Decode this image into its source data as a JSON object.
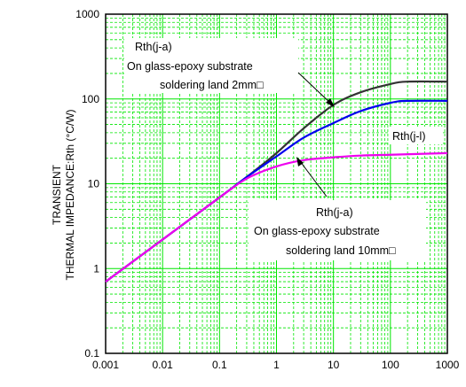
{
  "chart_data": {
    "type": "line",
    "xscale": "log",
    "yscale": "log",
    "xlim": [
      0.001,
      1000
    ],
    "ylim": [
      0.1,
      1000
    ],
    "xticks": [
      "0.001",
      "0.01",
      "0.1",
      "1",
      "10",
      "100",
      "1000"
    ],
    "yticks": [
      "1000",
      "100",
      "10",
      "1",
      "0.1"
    ],
    "ylabel_line1": "TRANSIENT",
    "ylabel_line2": "THERMAL IMPEDANCE:Rth (°C/W)",
    "xlabel": "",
    "grid": true,
    "grid_color": "#00e600",
    "series": [
      {
        "name": "Rth(j-a) On glass-epoxy substrate soldering land 2mm□",
        "color": "#333333",
        "x": [
          0.001,
          0.01,
          0.1,
          0.3,
          1,
          3,
          10,
          30,
          100,
          200,
          1000
        ],
        "y": [
          0.7,
          2.2,
          6.9,
          12,
          23,
          45,
          85,
          120,
          150,
          160,
          160
        ]
      },
      {
        "name": "Rth(j-a) On glass-epoxy substrate soldering land 10mm□",
        "color": "#0000ee",
        "x": [
          0.001,
          0.01,
          0.1,
          0.3,
          1,
          3,
          10,
          30,
          100,
          200,
          1000
        ],
        "y": [
          0.7,
          2.2,
          6.9,
          12,
          21,
          35,
          52,
          72,
          90,
          95,
          95
        ]
      },
      {
        "name": "Rth(j-l)",
        "color": "#ee00ee",
        "x": [
          0.001,
          0.01,
          0.1,
          0.3,
          1,
          3,
          10,
          30,
          100,
          1000
        ],
        "y": [
          0.7,
          2.2,
          6.9,
          11.5,
          16,
          19,
          20.5,
          21.5,
          22,
          23
        ]
      }
    ],
    "annotations": {
      "a2_line1": "Rth(j-a)",
      "a2_line2": "On glass-epoxy substrate",
      "a2_line3": "soldering land 2mm□",
      "a10_line1": "Rth(j-a)",
      "a10_line2": "On glass-epoxy substrate",
      "a10_line3": "soldering land 10mm□",
      "jl_label": "Rth(j-l)"
    }
  }
}
